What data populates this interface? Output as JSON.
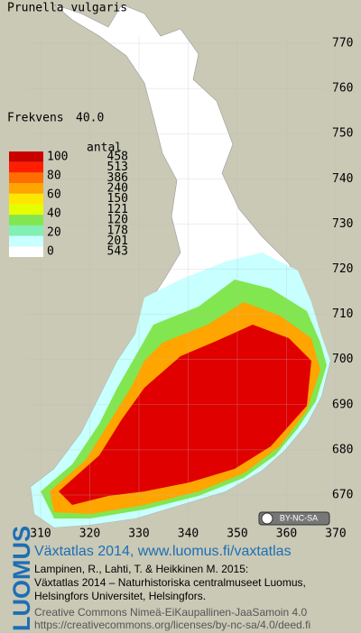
{
  "title": "Prunella vulgaris",
  "frequency": {
    "label": "Frekvens",
    "value": "40.0"
  },
  "legend": {
    "header": "antal",
    "bounds": [
      100,
      80,
      60,
      40,
      20,
      0
    ],
    "classes": [
      {
        "color": "#c80000",
        "count": 458
      },
      {
        "color": "#ff1e00",
        "count": 513
      },
      {
        "color": "#ff6e00",
        "count": 386
      },
      {
        "color": "#ffa500",
        "count": 240
      },
      {
        "color": "#ffe600",
        "count": 150
      },
      {
        "color": "#e6ff00",
        "count": 121
      },
      {
        "color": "#82e650",
        "count": 120
      },
      {
        "color": "#82f0b4",
        "count": 178
      },
      {
        "color": "#c8ffff",
        "count": 201
      },
      {
        "color": "#ffffff",
        "count": 543
      }
    ]
  },
  "grid": {
    "yticks": [
      670,
      680,
      690,
      700,
      710,
      720,
      730,
      740,
      750,
      760,
      770
    ],
    "xticks": [
      310,
      320,
      330,
      340,
      350,
      360,
      370
    ]
  },
  "license_badge": "BY-NC-SA",
  "footer": {
    "brand": "LUOMUS",
    "heading": "Växtatlas 2014, www.luomus.fi/vaxtatlas",
    "citation": [
      "Lampinen, R., Lahti, T. & Heikkinen M. 2015:",
      "Växtatlas 2014 – Naturhistoriska centralmuseet Luomus,",
      "Helsingfors Universitet, Helsingfors."
    ],
    "license": [
      "Creative Commons Nimeä-EiKaupallinen-JaaSamoin 4.0",
      "https://creativecommons.org/licenses/by-nc-sa/4.0/deed.fi"
    ]
  }
}
